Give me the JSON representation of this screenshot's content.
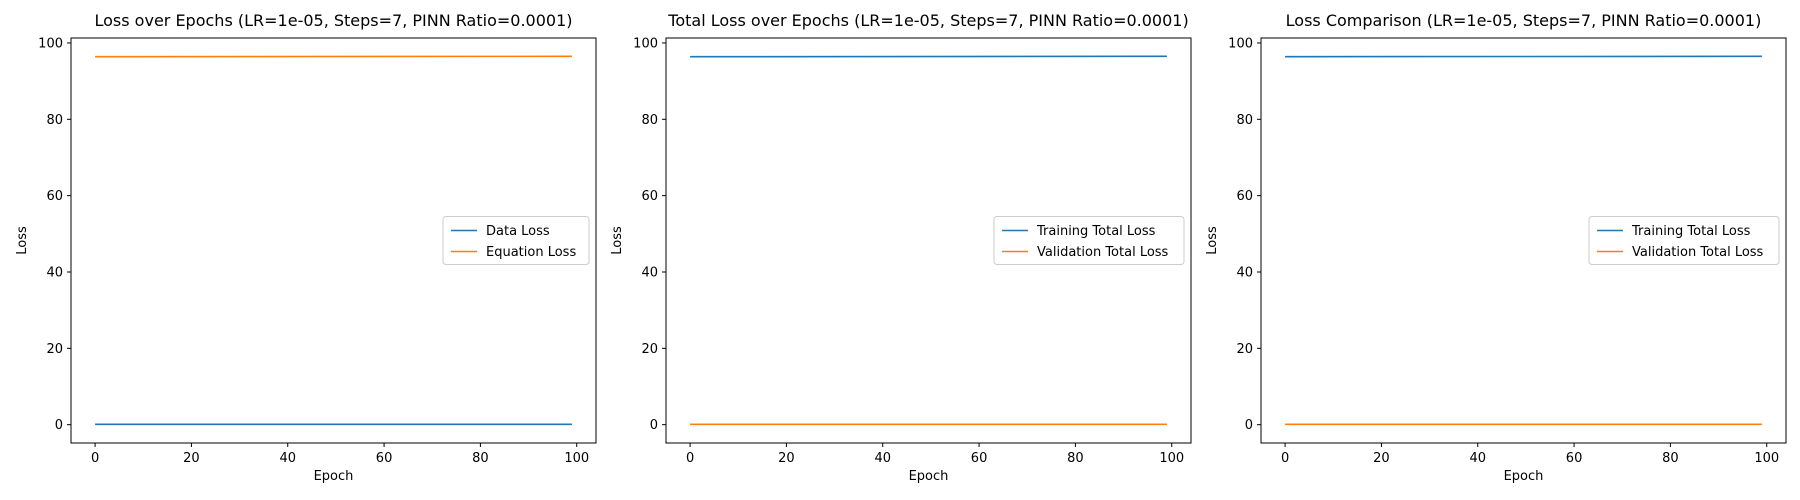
{
  "chart_data": [
    {
      "type": "line",
      "title": "Loss over Epochs (LR=1e-05, Steps=7, PINN Ratio=0.0001)",
      "xlabel": "Epoch",
      "ylabel": "Loss",
      "xlim": [
        -5,
        104
      ],
      "ylim": [
        -4.8,
        101.3
      ],
      "xticks": [
        0,
        20,
        40,
        60,
        80,
        100
      ],
      "yticks": [
        0,
        20,
        40,
        60,
        80,
        100
      ],
      "grid": false,
      "legend_position": "center-right",
      "series": [
        {
          "name": "Data Loss",
          "color": "#1f77b4",
          "x": [
            0,
            99
          ],
          "y": [
            0.1,
            0.1
          ]
        },
        {
          "name": "Equation Loss",
          "color": "#ff7f0e",
          "x": [
            0,
            99
          ],
          "y": [
            96.4,
            96.5
          ]
        }
      ]
    },
    {
      "type": "line",
      "title": "Total Loss over Epochs (LR=1e-05, Steps=7, PINN Ratio=0.0001)",
      "xlabel": "Epoch",
      "ylabel": "Loss",
      "xlim": [
        -5,
        104
      ],
      "ylim": [
        -4.8,
        101.3
      ],
      "xticks": [
        0,
        20,
        40,
        60,
        80,
        100
      ],
      "yticks": [
        0,
        20,
        40,
        60,
        80,
        100
      ],
      "grid": false,
      "legend_position": "center-right",
      "series": [
        {
          "name": "Training Total Loss",
          "color": "#1f77b4",
          "x": [
            0,
            99
          ],
          "y": [
            96.4,
            96.5
          ]
        },
        {
          "name": "Validation Total Loss",
          "color": "#ff7f0e",
          "x": [
            0,
            99
          ],
          "y": [
            0.1,
            0.1
          ]
        }
      ]
    },
    {
      "type": "line",
      "title": "Loss Comparison (LR=1e-05, Steps=7, PINN Ratio=0.0001)",
      "xlabel": "Epoch",
      "ylabel": "Loss",
      "xlim": [
        -5,
        104
      ],
      "ylim": [
        -4.8,
        101.3
      ],
      "xticks": [
        0,
        20,
        40,
        60,
        80,
        100
      ],
      "yticks": [
        0,
        20,
        40,
        60,
        80,
        100
      ],
      "grid": false,
      "legend_position": "center-right",
      "series": [
        {
          "name": "Training Total Loss",
          "color": "#1f77b4",
          "x": [
            0,
            99
          ],
          "y": [
            96.4,
            96.5
          ]
        },
        {
          "name": "Validation Total Loss",
          "color": "#ff7f0e",
          "x": [
            0,
            99
          ],
          "y": [
            0.1,
            0.1
          ]
        }
      ]
    }
  ]
}
